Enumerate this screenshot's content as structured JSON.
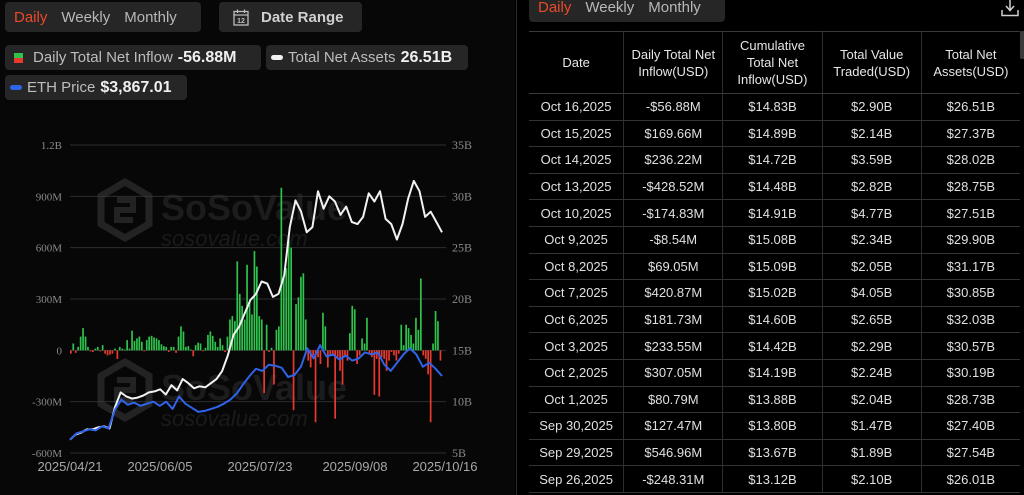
{
  "left_panel": {
    "period_tabs": [
      {
        "label": "Daily",
        "active": true
      },
      {
        "label": "Weekly",
        "active": false
      },
      {
        "label": "Monthly",
        "active": false
      }
    ],
    "date_range": {
      "label": "Date Range",
      "icon": "calendar-icon",
      "icon_text": "12"
    },
    "legend": {
      "inflow": {
        "label": "Daily Total Net Inflow",
        "value": "-56.88M"
      },
      "assets": {
        "label": "Total Net Assets",
        "value": "26.51B"
      },
      "price": {
        "label": "ETH Price",
        "value": "$3,867.01"
      }
    },
    "watermark": {
      "brand": "SoSoValue",
      "url": "sosovalue.com"
    }
  },
  "right_panel": {
    "period_tabs": [
      {
        "label": "Daily",
        "active": true
      },
      {
        "label": "Weekly",
        "active": false
      },
      {
        "label": "Monthly",
        "active": false
      }
    ],
    "download_icon": "download-icon",
    "table": {
      "headers": [
        "Date",
        "Daily Total Net Inflow(USD)",
        "Cumulative Total Net Inflow(USD)",
        "Total Value Traded(USD)",
        "Total Net Assets(USD)"
      ],
      "rows": [
        {
          "date": "Oct 16,2025",
          "inflow": "-$56.88M",
          "cumulative": "$14.83B",
          "traded": "$2.90B",
          "assets": "$26.51B",
          "sign": "neg"
        },
        {
          "date": "Oct 15,2025",
          "inflow": "$169.66M",
          "cumulative": "$14.89B",
          "traded": "$2.14B",
          "assets": "$27.37B",
          "sign": "pos"
        },
        {
          "date": "Oct 14,2025",
          "inflow": "$236.22M",
          "cumulative": "$14.72B",
          "traded": "$3.59B",
          "assets": "$28.02B",
          "sign": "pos"
        },
        {
          "date": "Oct 13,2025",
          "inflow": "-$428.52M",
          "cumulative": "$14.48B",
          "traded": "$2.82B",
          "assets": "$28.75B",
          "sign": "neg"
        },
        {
          "date": "Oct 10,2025",
          "inflow": "-$174.83M",
          "cumulative": "$14.91B",
          "traded": "$4.77B",
          "assets": "$27.51B",
          "sign": "neg"
        },
        {
          "date": "Oct 9,2025",
          "inflow": "-$8.54M",
          "cumulative": "$15.08B",
          "traded": "$2.34B",
          "assets": "$29.90B",
          "sign": "neg"
        },
        {
          "date": "Oct 8,2025",
          "inflow": "$69.05M",
          "cumulative": "$15.09B",
          "traded": "$2.05B",
          "assets": "$31.17B",
          "sign": "pos"
        },
        {
          "date": "Oct 7,2025",
          "inflow": "$420.87M",
          "cumulative": "$15.02B",
          "traded": "$4.05B",
          "assets": "$30.85B",
          "sign": "pos"
        },
        {
          "date": "Oct 6,2025",
          "inflow": "$181.73M",
          "cumulative": "$14.60B",
          "traded": "$2.65B",
          "assets": "$32.03B",
          "sign": "pos"
        },
        {
          "date": "Oct 3,2025",
          "inflow": "$233.55M",
          "cumulative": "$14.42B",
          "traded": "$2.29B",
          "assets": "$30.57B",
          "sign": "pos"
        },
        {
          "date": "Oct 2,2025",
          "inflow": "$307.05M",
          "cumulative": "$14.19B",
          "traded": "$2.24B",
          "assets": "$30.19B",
          "sign": "pos"
        },
        {
          "date": "Oct 1,2025",
          "inflow": "$80.79M",
          "cumulative": "$13.88B",
          "traded": "$2.04B",
          "assets": "$28.73B",
          "sign": "pos"
        },
        {
          "date": "Sep 30,2025",
          "inflow": "$127.47M",
          "cumulative": "$13.80B",
          "traded": "$1.47B",
          "assets": "$27.40B",
          "sign": "pos"
        },
        {
          "date": "Sep 29,2025",
          "inflow": "$546.96M",
          "cumulative": "$13.67B",
          "traded": "$1.89B",
          "assets": "$27.54B",
          "sign": "pos"
        },
        {
          "date": "Sep 26,2025",
          "inflow": "-$248.31M",
          "cumulative": "$13.12B",
          "traded": "$2.10B",
          "assets": "$26.01B",
          "sign": "neg"
        }
      ]
    }
  },
  "colors": {
    "accent": "#ea4a2b",
    "positive": "#2fc24c",
    "negative": "#e8392e",
    "assets_line": "#f2f2f2",
    "price_line": "#2f63e8",
    "grid": "#2e2e2e"
  },
  "chart_data": {
    "type": "bar+line",
    "title": "",
    "x_ticks": [
      "2025/04/21",
      "2025/06/05",
      "2025/07/23",
      "2025/09/08",
      "2025/10/16"
    ],
    "y_left": {
      "label": "Daily Total Net Inflow",
      "ticks": [
        "1.2B",
        "900M",
        "600M",
        "300M",
        "0",
        "-300M",
        "-600M"
      ],
      "range": [
        -600,
        1200
      ],
      "unit": "M"
    },
    "y_right": {
      "label": "Total Net Assets",
      "ticks": [
        "35B",
        "30B",
        "25B",
        "20B",
        "15B",
        "10B",
        "5B"
      ],
      "range": [
        5,
        35
      ],
      "unit": "B"
    },
    "grid": true,
    "legend_position": "top",
    "series": [
      {
        "name": "Daily Total Net Inflow",
        "type": "bar",
        "axis": "left",
        "values": [
          -20,
          40,
          -15,
          20,
          80,
          130,
          80,
          20,
          -5,
          -10,
          10,
          20,
          -5,
          30,
          -20,
          -30,
          -25,
          -20,
          10,
          -50,
          20,
          10,
          5,
          60,
          10,
          115,
          55,
          70,
          80,
          50,
          -5,
          60,
          80,
          85,
          75,
          70,
          60,
          35,
          25,
          20,
          -10,
          20,
          20,
          -15,
          80,
          140,
          110,
          20,
          25,
          5,
          -35,
          30,
          45,
          40,
          -5,
          15,
          90,
          110,
          85,
          50,
          20,
          70,
          30,
          -10,
          80,
          180,
          200,
          170,
          520,
          330,
          260,
          180,
          500,
          280,
          210,
          580,
          490,
          200,
          180,
          -250,
          150,
          -10,
          15,
          -200,
          120,
          140,
          950,
          420,
          480,
          670,
          600,
          -350,
          270,
          310,
          430,
          450,
          180,
          -60,
          -100,
          -30,
          -420,
          -40,
          -80,
          220,
          140,
          -100,
          -25,
          -30,
          -400,
          -50,
          -120,
          -200,
          -40,
          -60,
          100,
          260,
          240,
          -80,
          -30,
          70,
          40,
          190,
          -20,
          -40,
          -260,
          -50,
          -270,
          -40,
          -50,
          -120,
          -60,
          -10,
          -30,
          -60,
          -20,
          150,
          30,
          150,
          130,
          90,
          40,
          190,
          120,
          420,
          -30,
          -50,
          -140,
          -420,
          40,
          230,
          170,
          -60
        ]
      },
      {
        "name": "Total Net Assets",
        "type": "line",
        "axis": "right",
        "values": [
          6.3,
          6.8,
          7.0,
          7.3,
          7.3,
          7.5,
          7.6,
          7.4,
          9.5,
          10.9,
          10.5,
          10.3,
          10.4,
          10.6,
          10.9,
          11.0,
          11.2,
          10.7,
          11.6,
          11.1,
          12.2,
          11.8,
          11.3,
          11.5,
          11.4,
          11.8,
          12.2,
          13.0,
          14.5,
          16.5,
          17.3,
          18.6,
          19.9,
          20.5,
          21.7,
          21.5,
          20.2,
          20.5,
          22.3,
          27.0,
          29.6,
          28.5,
          26.5,
          27.0,
          30.5,
          28.8,
          30.0,
          29.5,
          28.2,
          29.0,
          27.5,
          27.3,
          28.0,
          30.3,
          29.5,
          30.5,
          27.8,
          27.3,
          25.8,
          27.3,
          29.8,
          31.5,
          30.5,
          28.0,
          28.5,
          27.5,
          26.5
        ]
      },
      {
        "name": "ETH Price",
        "type": "line",
        "axis": "right",
        "note": "scaled overlay",
        "values": [
          6.3,
          6.9,
          7.1,
          7.3,
          7.2,
          7.6,
          7.4,
          9.2,
          10.2,
          9.7,
          9.9,
          9.6,
          9.8,
          10.0,
          9.6,
          10.0,
          9.3,
          10.5,
          9.8,
          9.4,
          9.0,
          9.1,
          9.3,
          9.5,
          9.8,
          10.2,
          10.8,
          11.7,
          12.5,
          13.2,
          13.0,
          13.6,
          13.5,
          13.3,
          12.4,
          12.6,
          13.4,
          15.2,
          14.2,
          15.5,
          14.4,
          14.6,
          14.1,
          14.5,
          14.0,
          14.2,
          14.8,
          14.6,
          14.8,
          13.6,
          13.0,
          13.8,
          14.6,
          15.2,
          14.6,
          13.4,
          13.8,
          13.2,
          12.5
        ]
      }
    ],
    "watermark": "SoSoValue sosovalue.com"
  }
}
